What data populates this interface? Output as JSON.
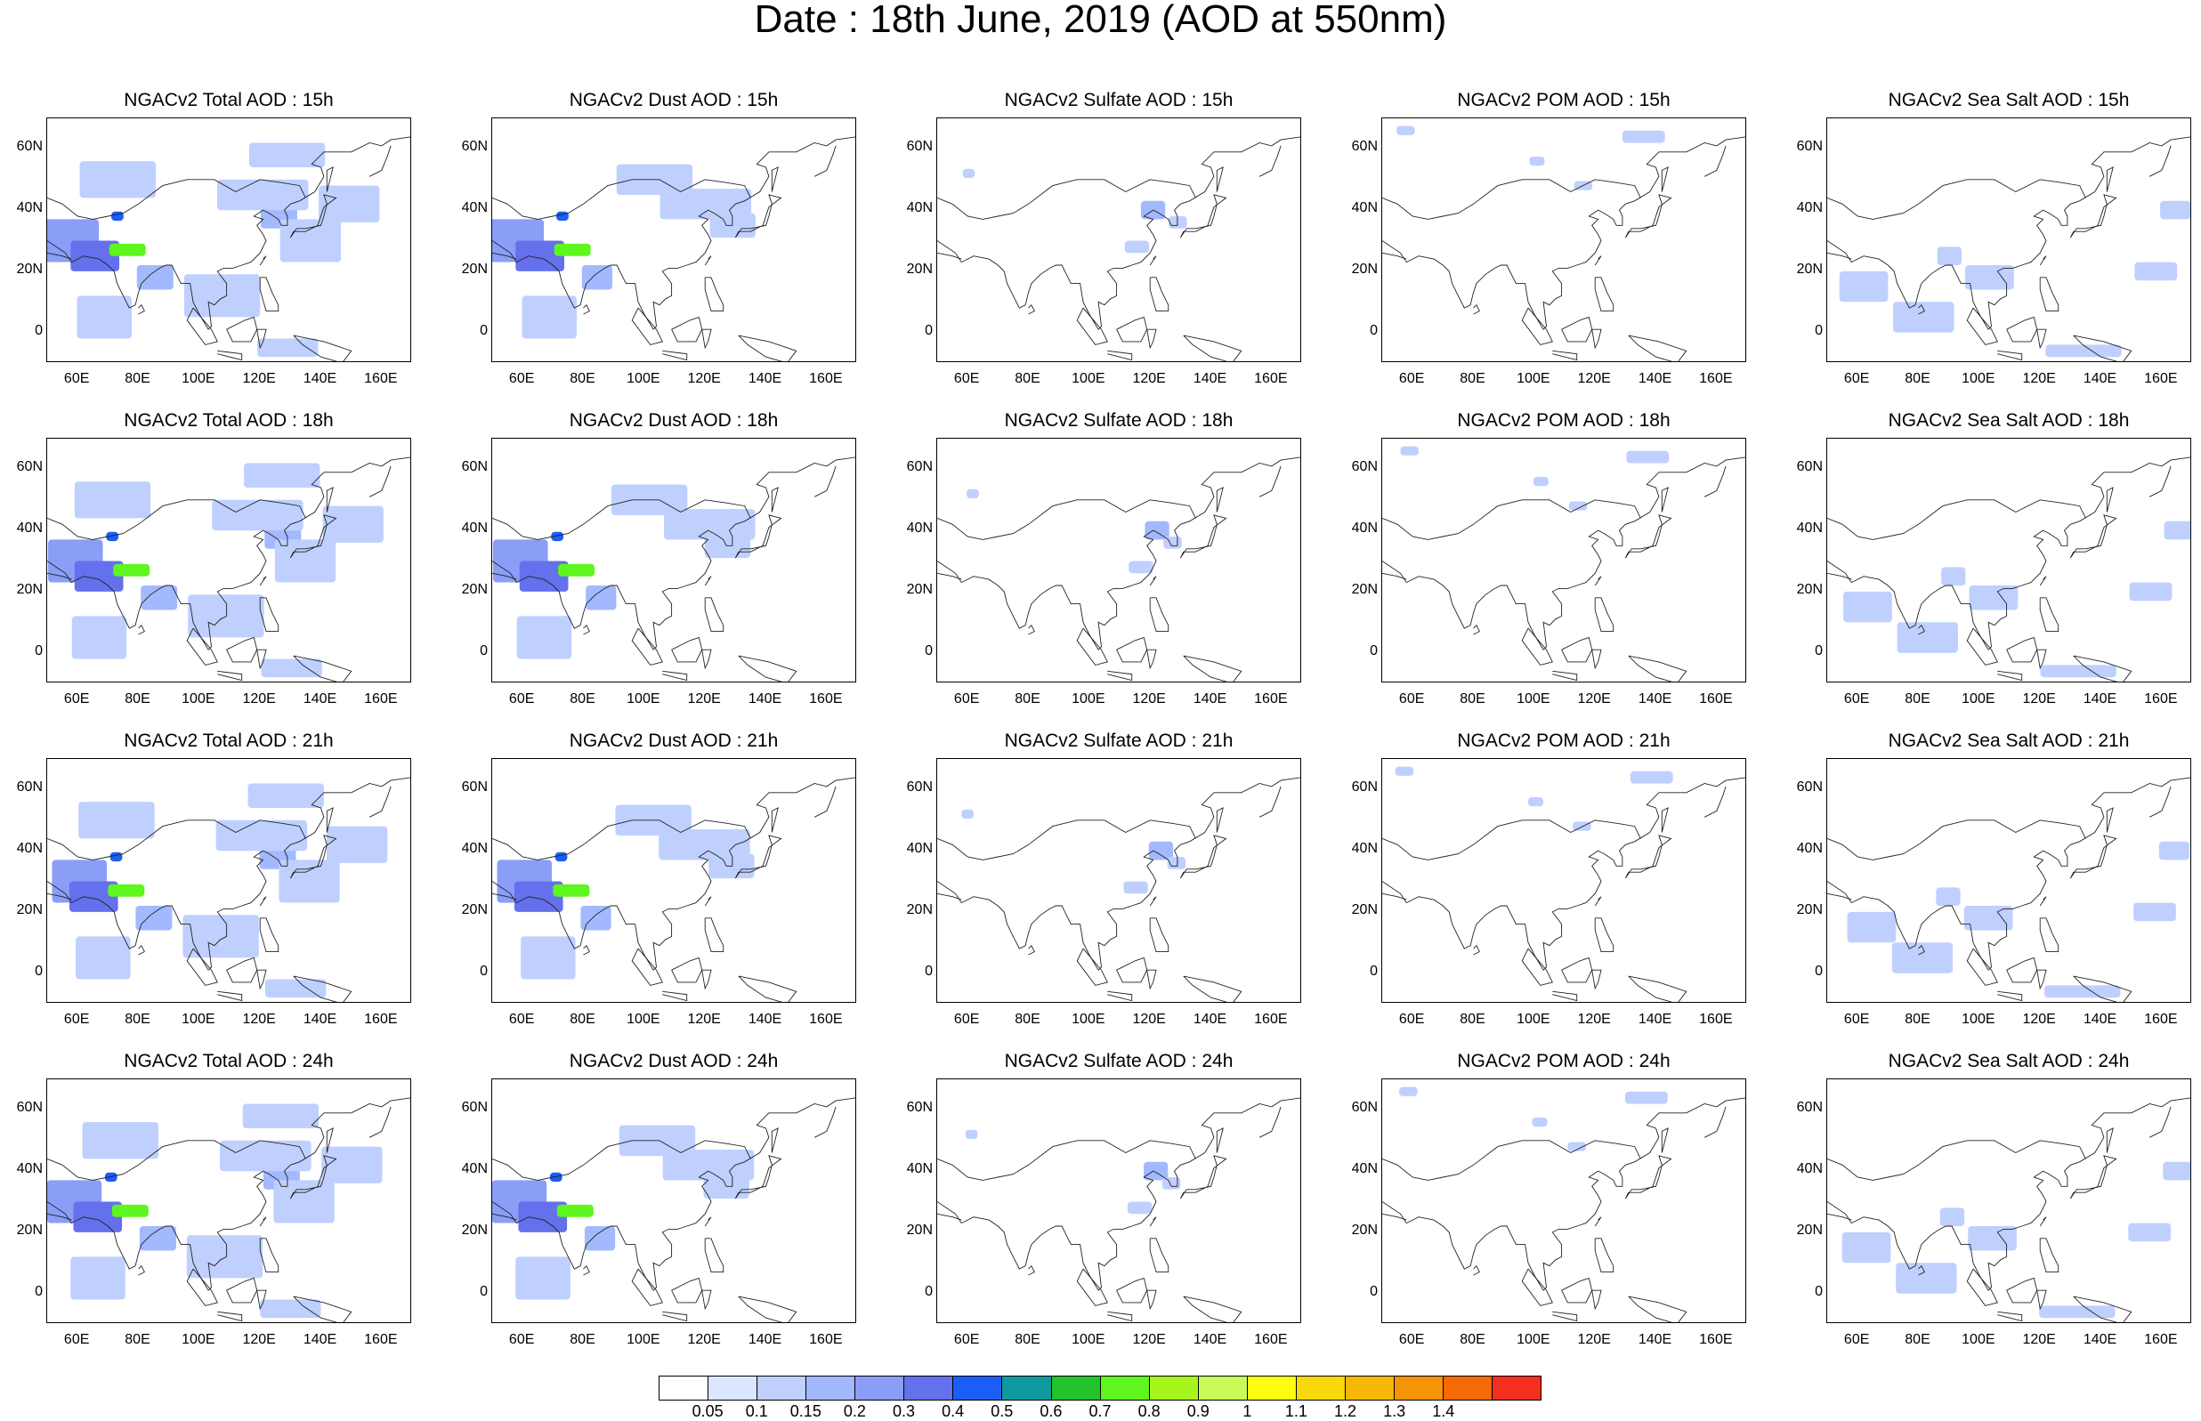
{
  "title": "Date : 18th June, 2019 (AOD at 550nm)",
  "panel_titles": [
    [
      "NGACv2 Total AOD : 15h",
      "NGACv2 Dust AOD : 15h",
      "NGACv2 Sulfate AOD : 15h",
      "NGACv2 POM AOD : 15h",
      "NGACv2 Sea Salt AOD : 15h"
    ],
    [
      "NGACv2 Total AOD : 18h",
      "NGACv2 Dust AOD : 18h",
      "NGACv2 Sulfate AOD : 18h",
      "NGACv2 POM AOD : 18h",
      "NGACv2 Sea Salt AOD : 18h"
    ],
    [
      "NGACv2 Total AOD : 21h",
      "NGACv2 Dust AOD : 21h",
      "NGACv2 Sulfate AOD : 21h",
      "NGACv2 POM AOD : 21h",
      "NGACv2 Sea Salt AOD : 21h"
    ],
    [
      "NGACv2 Total AOD : 24h",
      "NGACv2 Dust AOD : 24h",
      "NGACv2 Sulfate AOD : 24h",
      "NGACv2 POM AOD : 24h",
      "NGACv2 Sea Salt  AOD : 24h"
    ]
  ],
  "lat_ticks": [
    "60N",
    "40N",
    "20N",
    "0"
  ],
  "lon_ticks": [
    "60E",
    "80E",
    "100E",
    "120E",
    "140E",
    "160E"
  ],
  "colorbar": {
    "colors": [
      "#ffffff",
      "#dbe6ff",
      "#bfd0ff",
      "#a3b9ff",
      "#8a9df7",
      "#6570ec",
      "#1a5ef7",
      "#0f9aa0",
      "#23c42b",
      "#5ff51e",
      "#a8f51e",
      "#c8fb5a",
      "#fdfd0f",
      "#f9d80b",
      "#f8b707",
      "#f79306",
      "#f56a05",
      "#f52f1e"
    ],
    "labels": [
      "0.05",
      "0.1",
      "0.15",
      "0.2",
      "0.3",
      "0.4",
      "0.5",
      "0.6",
      "0.7",
      "0.8",
      "0.9",
      "1",
      "1.1",
      "1.2",
      "1.3",
      "1.4"
    ]
  }
}
